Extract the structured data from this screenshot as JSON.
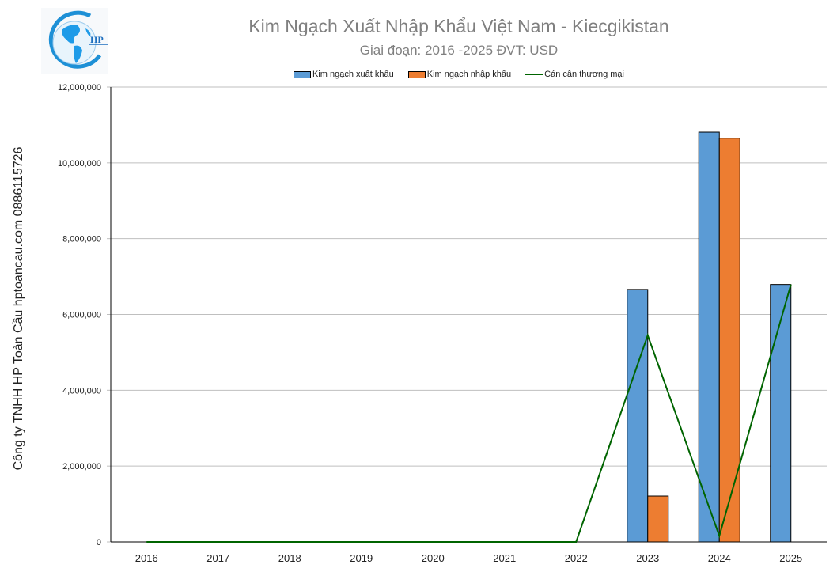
{
  "header": {
    "title": "Kim Ngạch Xuất Nhập Khẩu Việt Nam - Kiecgikistan",
    "subtitle": "Giai đoạn: 2016 -2025  ĐVT: USD",
    "logo_text": "HP"
  },
  "side_label": "Công ty TNHH HP Toàn Cầu hptoancau.com 0886115726",
  "legend": [
    {
      "label": "Kim ngạch xuất khẩu",
      "color": "#5b9bd5",
      "kind": "bar"
    },
    {
      "label": "Kim ngạch nhập khẩu",
      "color": "#ed7d31",
      "kind": "bar"
    },
    {
      "label": "Cán cân thương mại",
      "color": "#006400",
      "kind": "line"
    }
  ],
  "chart_data": {
    "type": "bar",
    "title": "Kim Ngạch Xuất Nhập Khẩu Việt Nam - Kiecgikistan",
    "subtitle": "Giai đoạn: 2016 -2025  ĐVT: USD",
    "xlabel": "",
    "ylabel": "",
    "ylim": [
      0,
      12000000
    ],
    "yticks": [
      0,
      2000000,
      4000000,
      6000000,
      8000000,
      10000000,
      12000000
    ],
    "ytick_labels": [
      "0",
      "2,000,000",
      "4,000,000",
      "6,000,000",
      "8,000,000",
      "10,000,000",
      "12,000,000"
    ],
    "grid": true,
    "legend_position": "top",
    "categories": [
      "2016",
      "2017",
      "2018",
      "2019",
      "2020",
      "2021",
      "2022",
      "2023",
      "2024",
      "2025"
    ],
    "series": [
      {
        "name": "Kim ngạch xuất khẩu",
        "type": "bar",
        "color": "#5b9bd5",
        "values": [
          0,
          0,
          0,
          0,
          0,
          0,
          0,
          6660000,
          10810000,
          6790000
        ]
      },
      {
        "name": "Kim ngạch nhập khẩu",
        "type": "bar",
        "color": "#ed7d31",
        "values": [
          0,
          0,
          0,
          0,
          0,
          0,
          0,
          1210000,
          10650000,
          0
        ]
      },
      {
        "name": "Cán cân thương mại",
        "type": "line",
        "color": "#006400",
        "values": [
          0,
          0,
          0,
          0,
          0,
          0,
          0,
          5450000,
          160000,
          6790000
        ]
      }
    ]
  }
}
